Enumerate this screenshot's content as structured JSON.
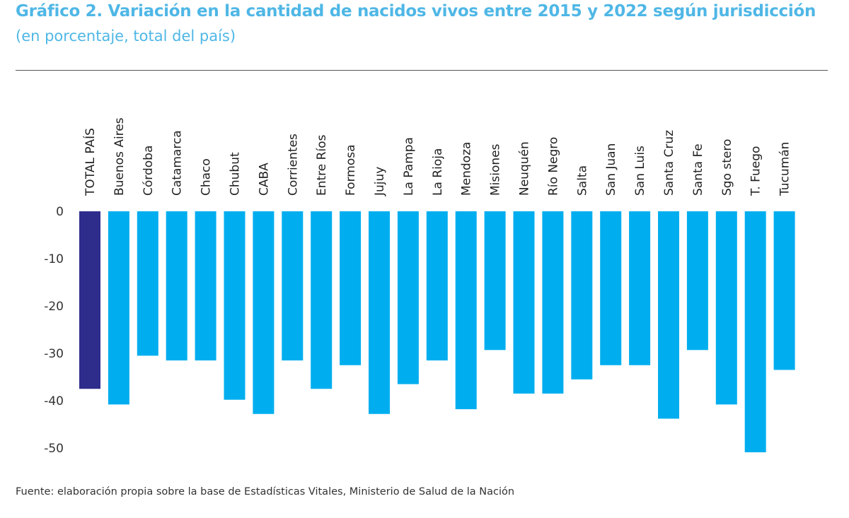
{
  "header": {
    "title": "Gráfico 2. Variación en la cantidad de nacidos vivos entre 2015 y 2022 según jurisdicción",
    "subtitle": "(en porcentaje, total del país)"
  },
  "footer": {
    "source": "Fuente: elaboración propia sobre la base de Estadísticas Vitales, Ministerio de Salud de la Nación"
  },
  "colors": {
    "title": "#4fb7e6",
    "total_bar": "#2e2d8c",
    "province_bar": "#00aeef"
  },
  "chart_data": {
    "type": "bar",
    "title": "Gráfico 2. Variación en la cantidad de nacidos vivos entre 2015 y 2022 según jurisdicción",
    "subtitle": "(en porcentaje, total del país)",
    "xlabel": "",
    "ylabel": "",
    "ylim": [
      -55,
      0
    ],
    "yticks": [
      0,
      -10,
      -20,
      -30,
      -40,
      -50
    ],
    "grid": false,
    "categories": [
      "TOTAL PAÍS",
      "Buenos Aires",
      "Córdoba",
      "Catamarca",
      "Chaco",
      "Chubut",
      "CABA",
      "Corrientes",
      "Entre Ríos",
      "Formosa",
      "Jujuy",
      "La Pampa",
      "La Rioja",
      "Mendoza",
      "Misiones",
      "Neuquén",
      "Río Negro",
      "Salta",
      "San Juan",
      "San Luis",
      "Santa Cruz",
      "Santa Fe",
      "Sgo stero",
      "T. Fuego",
      "Tucumán"
    ],
    "values": [
      -37.5,
      -40.8,
      -30.5,
      -31.5,
      -31.5,
      -39.8,
      -42.8,
      -31.5,
      -37.5,
      -32.5,
      -42.8,
      -36.5,
      -31.5,
      -41.8,
      -29.3,
      -38.5,
      -38.5,
      -35.5,
      -32.5,
      -32.5,
      -43.8,
      -29.3,
      -40.8,
      -50.9,
      -33.5
    ],
    "highlight_category": "TOTAL PAÍS"
  }
}
